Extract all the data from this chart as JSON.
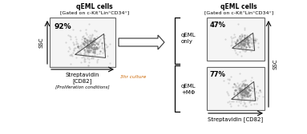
{
  "title_left": "qEML cells",
  "subtitle_left": "[Gated on c-Kit⁺Lin⁼CD34⁼]",
  "title_right": "qEML cells",
  "subtitle_right": "[Gated on c-Kit⁺Lin⁼CD34⁼]",
  "pct_left": "92%",
  "pct_top_right": "47%",
  "pct_bot_right": "77%",
  "label_left_y": "SSC",
  "label_left_x1": "Streptavidin",
  "label_left_x2": "[CD82]",
  "label_culture": "3hr culture",
  "label_conditions": "[Proliferation conditions]",
  "label_top_condition": "qEML\nonly",
  "label_bot_condition": "qEML\n+MΦ",
  "label_right_y": "SSC",
  "label_right_x": "Streptavidin [CD82]",
  "bg_color": "#ffffff",
  "box_color": "#000000",
  "text_color": "#000000",
  "culture_color": "#cc6600"
}
